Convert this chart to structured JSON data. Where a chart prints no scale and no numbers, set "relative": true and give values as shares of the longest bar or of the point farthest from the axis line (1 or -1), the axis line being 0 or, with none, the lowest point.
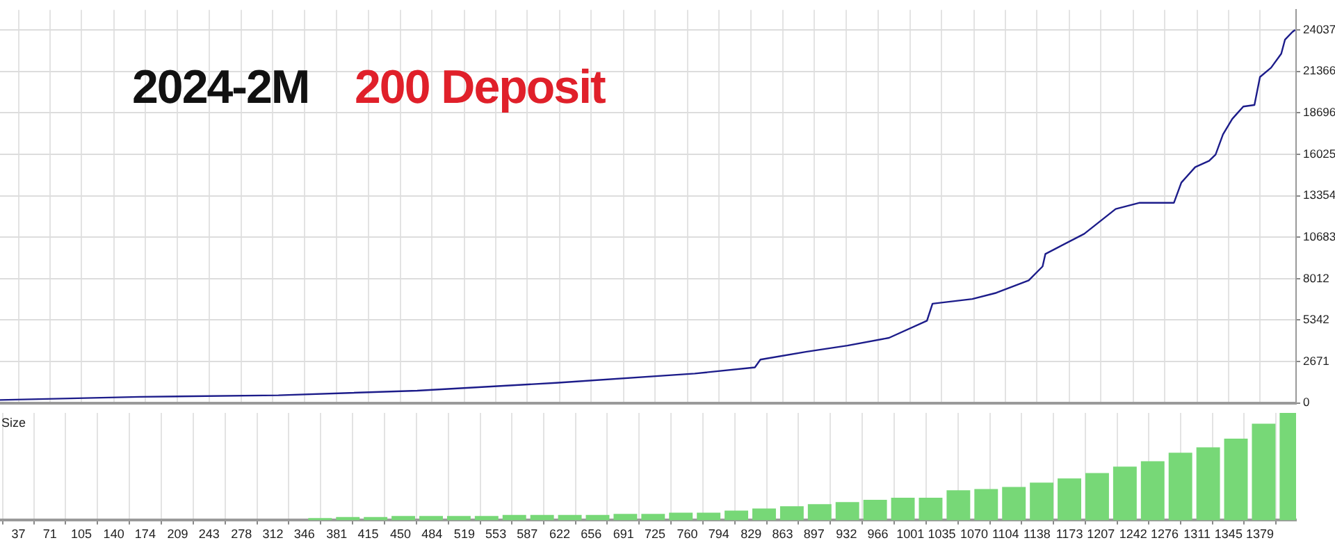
{
  "chart_data": [
    {
      "type": "line",
      "title": "2024-2M",
      "subtitle": "200 Deposit",
      "marker": "none",
      "grid": true,
      "tick_labels": "y",
      "xlim": [
        17,
        1418
      ],
      "xticks": [
        37,
        71,
        105,
        140,
        174,
        209,
        243,
        278,
        312,
        346,
        381,
        415,
        450,
        484,
        519,
        553,
        587,
        622,
        656,
        691,
        725,
        760,
        794,
        829,
        863,
        897,
        932,
        966,
        1001,
        1035,
        1070,
        1104,
        1138,
        1173,
        1207,
        1242,
        1276,
        1311,
        1345,
        1379
      ],
      "ylim": [
        0,
        25325
      ],
      "yticks": [
        0,
        2671,
        5342,
        8012,
        10683,
        13354,
        16025,
        18696,
        21366,
        24037
      ],
      "series": [
        {
          "color": "#1c1c8a",
          "x": [
            17,
            168,
            318,
            468,
            618,
            768,
            833,
            839,
            888,
            933,
            978,
            1019,
            1025,
            1068,
            1094,
            1129,
            1144,
            1147,
            1189,
            1223,
            1249,
            1286,
            1294,
            1309,
            1324,
            1331,
            1339,
            1349,
            1361,
            1373,
            1379,
            1391,
            1402,
            1406,
            1414,
            1417
          ],
          "values": [
            200,
            400,
            500,
            800,
            1300,
            1900,
            2300,
            2800,
            3300,
            3700,
            4200,
            5300,
            6400,
            6700,
            7100,
            7900,
            8800,
            9600,
            10900,
            12500,
            12900,
            12900,
            14200,
            15200,
            15600,
            16000,
            17300,
            18300,
            19100,
            19200,
            21000,
            21600,
            22500,
            23400,
            23900,
            24037
          ]
        }
      ]
    },
    {
      "type": "bar",
      "ylabel": "Size",
      "relative": true,
      "grid": true,
      "tick_labels": "x",
      "xlim": [
        17,
        1418
      ],
      "xticks": [
        37,
        71,
        105,
        140,
        174,
        209,
        243,
        278,
        312,
        346,
        381,
        415,
        450,
        484,
        519,
        553,
        587,
        622,
        656,
        691,
        725,
        760,
        794,
        829,
        863,
        897,
        932,
        966,
        1001,
        1035,
        1070,
        1104,
        1138,
        1173,
        1207,
        1242,
        1276,
        1311,
        1345,
        1379
      ],
      "series": [
        {
          "color": "#77d877",
          "x": [
            363,
            393,
            423,
            453,
            483,
            513,
            543,
            573,
            603,
            633,
            663,
            693,
            723,
            753,
            783,
            813,
            843,
            873,
            903,
            933,
            963,
            993,
            1023,
            1053,
            1083,
            1113,
            1143,
            1173,
            1203,
            1233,
            1263,
            1293,
            1323,
            1353,
            1383,
            1413
          ],
          "values": [
            0.02,
            0.03,
            0.03,
            0.04,
            0.04,
            0.04,
            0.04,
            0.05,
            0.05,
            0.05,
            0.05,
            0.06,
            0.06,
            0.07,
            0.07,
            0.09,
            0.11,
            0.13,
            0.15,
            0.17,
            0.19,
            0.21,
            0.21,
            0.28,
            0.29,
            0.31,
            0.35,
            0.39,
            0.44,
            0.5,
            0.55,
            0.63,
            0.68,
            0.76,
            0.9,
            1
          ]
        }
      ]
    }
  ]
}
